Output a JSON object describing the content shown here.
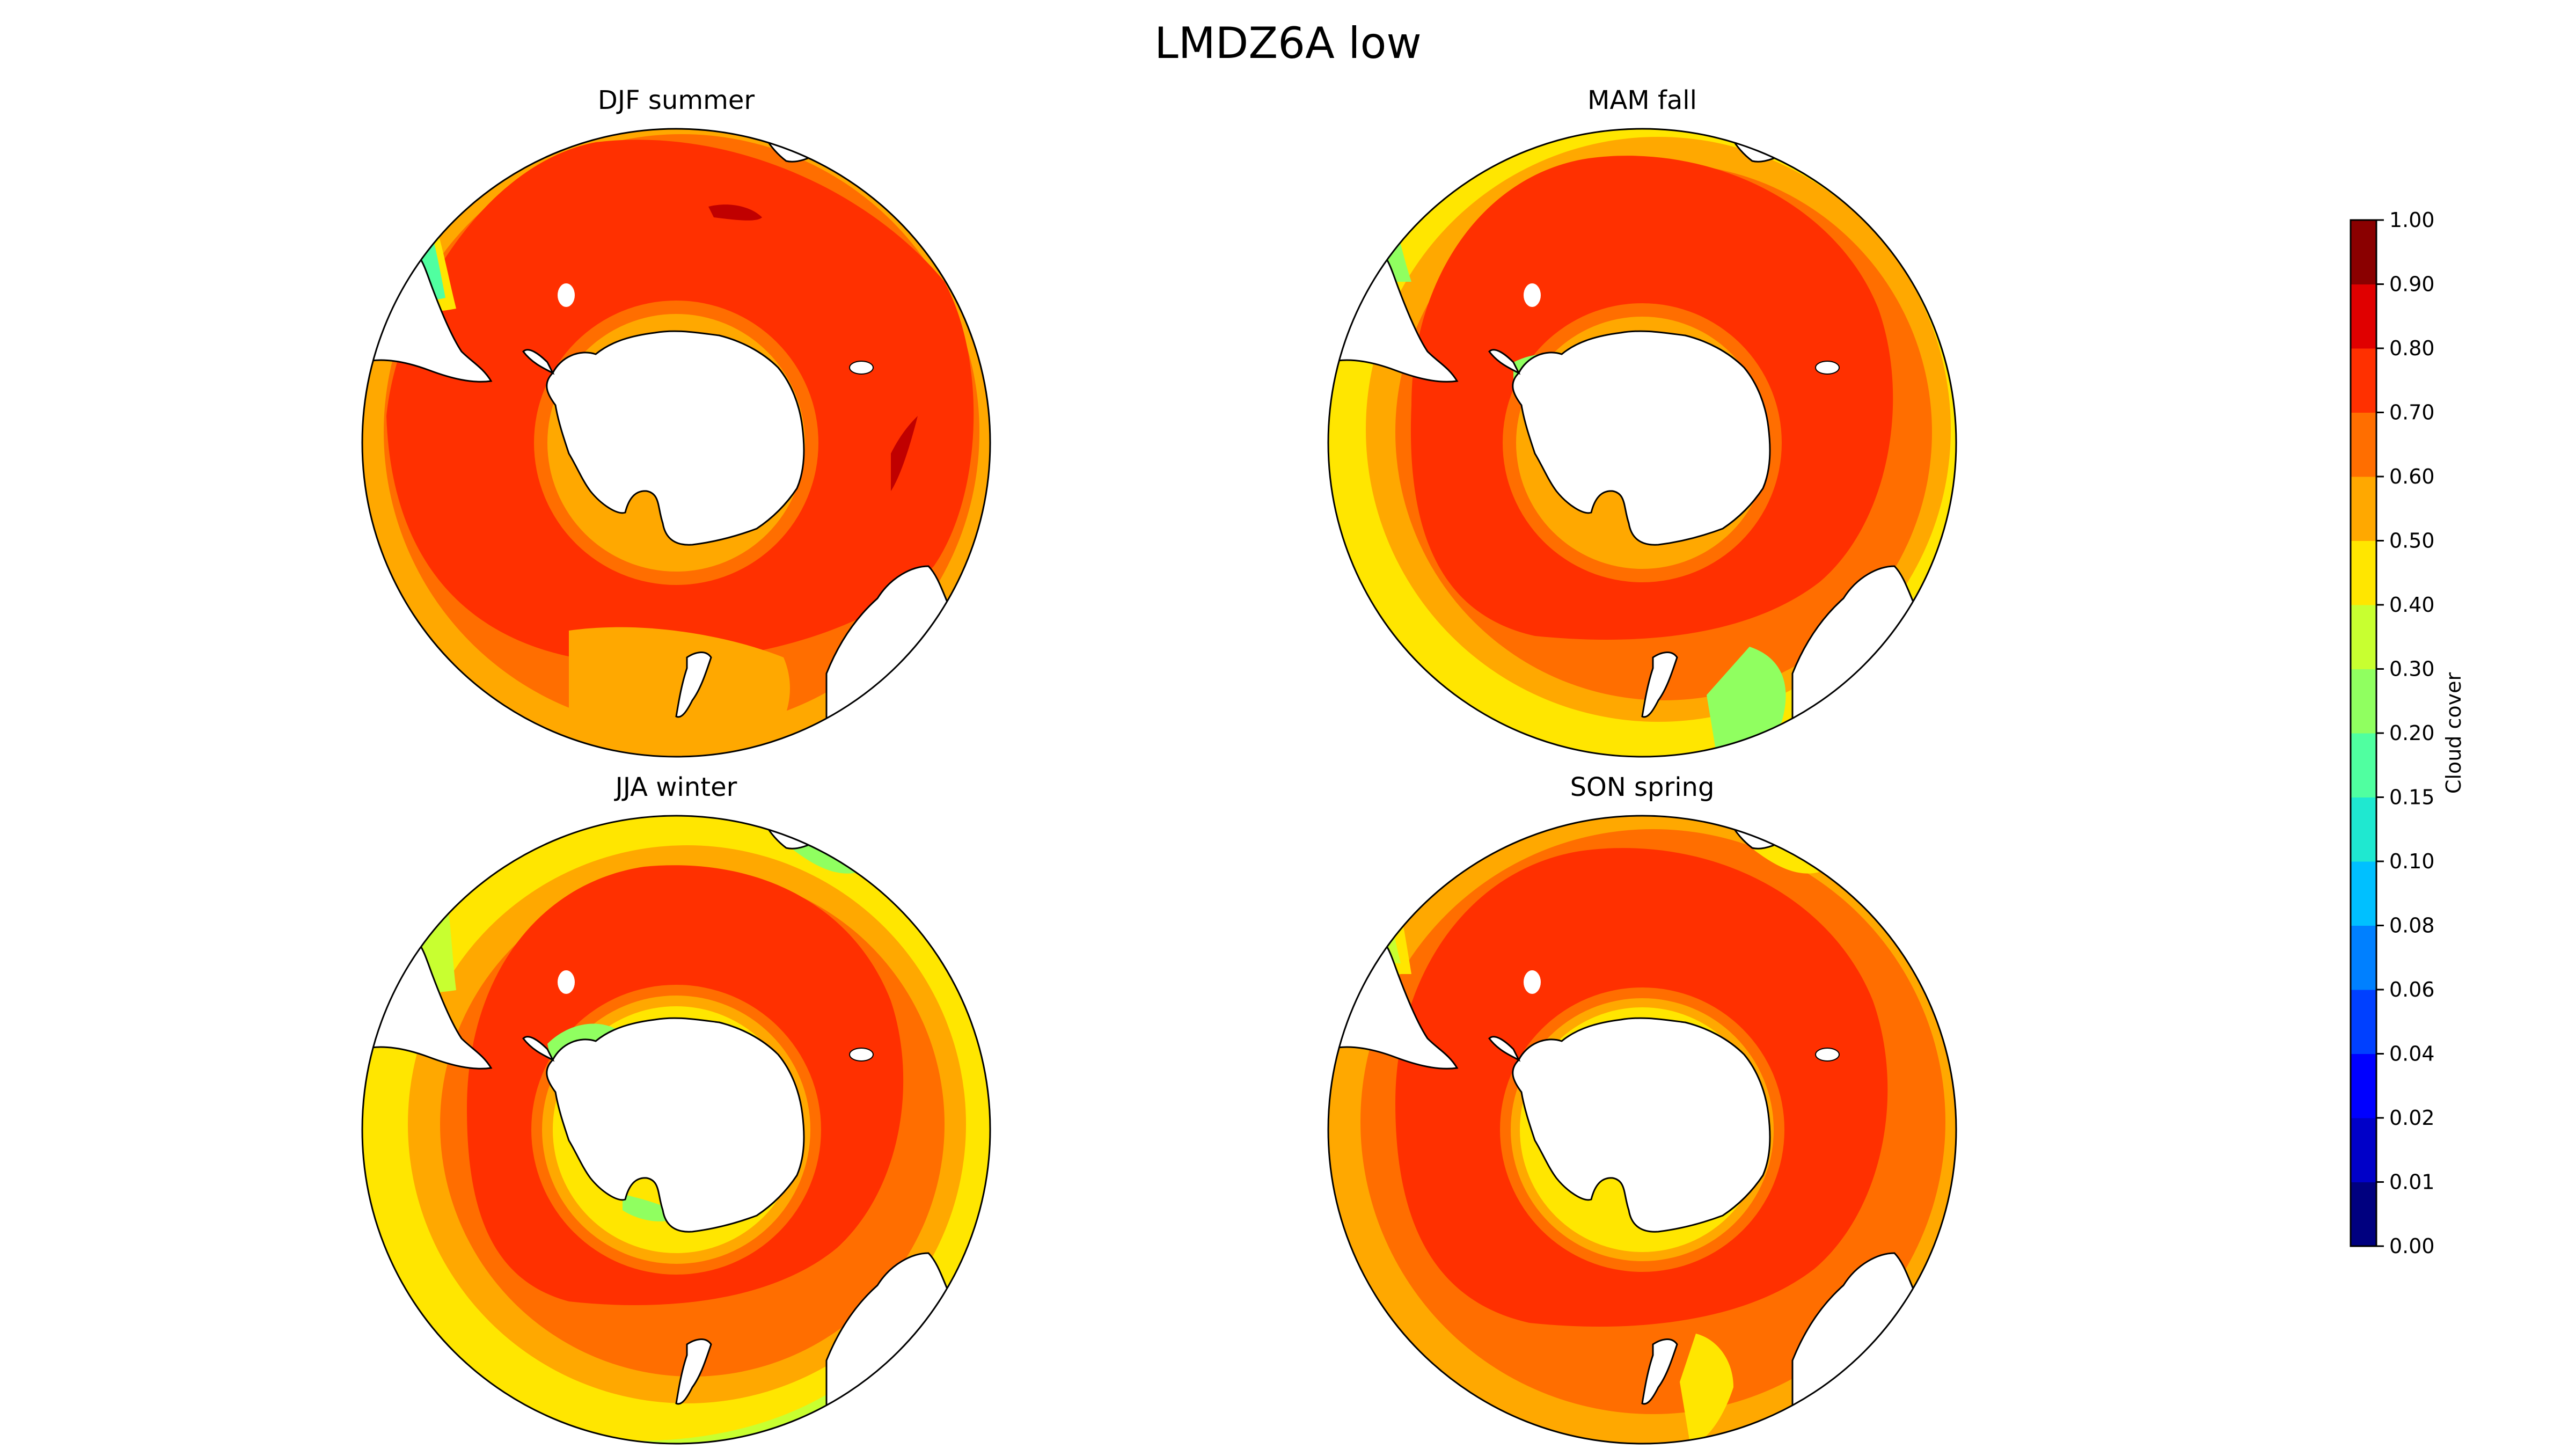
{
  "figure": {
    "title": "LMDZ6A low"
  },
  "panels": [
    {
      "id": "djf",
      "title": "DJF summer"
    },
    {
      "id": "mam",
      "title": "MAM fall"
    },
    {
      "id": "jja",
      "title": "JJA winter"
    },
    {
      "id": "son",
      "title": "SON spring"
    }
  ],
  "colorbar": {
    "label": "Cloud cover",
    "ticks": [
      "0.00",
      "0.01",
      "0.02",
      "0.04",
      "0.06",
      "0.08",
      "0.10",
      "0.15",
      "0.20",
      "0.30",
      "0.40",
      "0.50",
      "0.60",
      "0.70",
      "0.80",
      "0.90",
      "1.00"
    ],
    "colors": [
      "#00007f",
      "#0000c8",
      "#0000ff",
      "#0040ff",
      "#0080ff",
      "#00c0ff",
      "#1fe8d0",
      "#50ffa0",
      "#90ff60",
      "#c8ff30",
      "#ffe600",
      "#ffa800",
      "#ff6e00",
      "#ff3000",
      "#e00000",
      "#8a0000"
    ]
  },
  "colors": {
    "land": "#ffffff",
    "coast": "#000000",
    "ocean_core": "#ff3000",
    "ring_orange": "#ff6e00",
    "ring_amber": "#ffa800",
    "ring_yellow": "#ffe600",
    "ring_green": "#90ff60",
    "dark_red": "#c00000"
  }
}
